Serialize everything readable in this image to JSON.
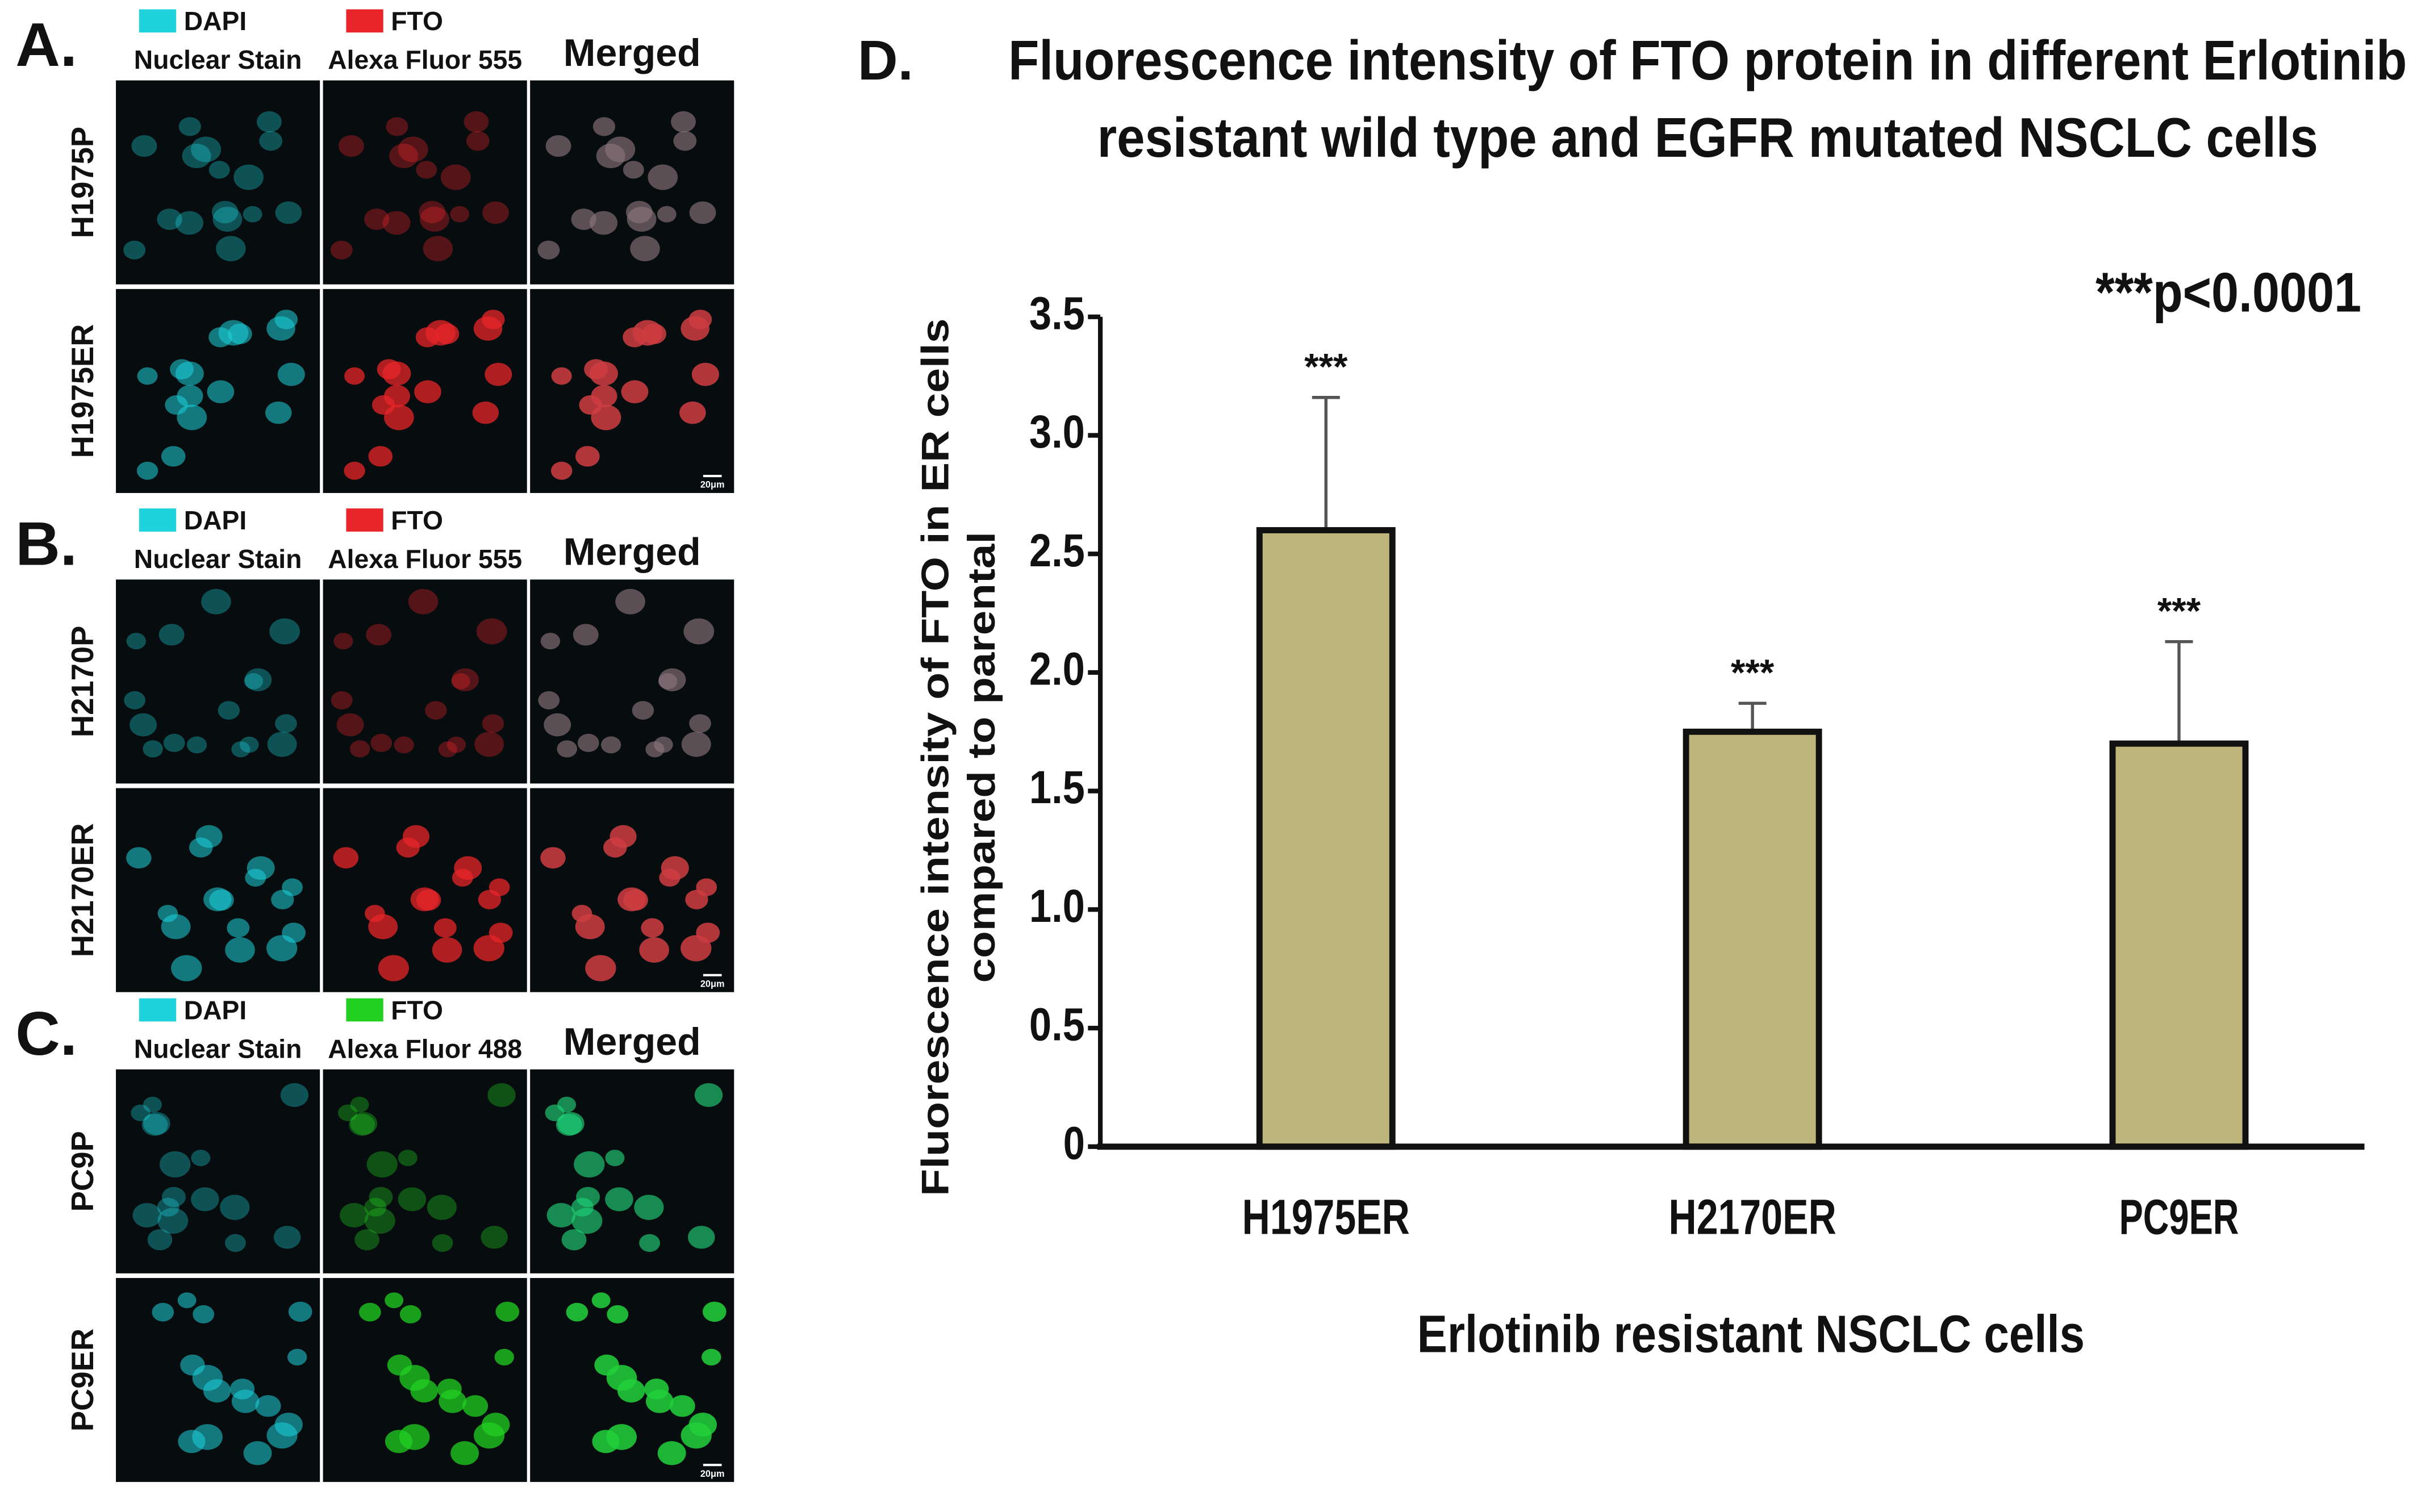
{
  "panels": [
    {
      "label": "A.",
      "channels": [
        {
          "name": "DAPI",
          "subtitle": "Nuclear Stain",
          "color": "#1ed3dc"
        },
        {
          "name": "FTO",
          "subtitle": "Alexa Fluor 555",
          "color": "#e8262a"
        },
        {
          "name": "Merged"
        }
      ],
      "rows": [
        "H1975P",
        "H1975ER"
      ],
      "scale_bar": "20μm"
    },
    {
      "label": "B.",
      "channels": [
        {
          "name": "DAPI",
          "subtitle": "Nuclear Stain",
          "color": "#1ed3dc"
        },
        {
          "name": "FTO",
          "subtitle": "Alexa Fluor 555",
          "color": "#e8262a"
        },
        {
          "name": "Merged"
        }
      ],
      "rows": [
        "H2170P",
        "H2170ER"
      ],
      "scale_bar": "20μm"
    },
    {
      "label": "C.",
      "channels": [
        {
          "name": "DAPI",
          "subtitle": "Nuclear Stain",
          "color": "#1ed3dc"
        },
        {
          "name": "FTO",
          "subtitle": "Alexa Fluor 488",
          "color": "#22d022"
        },
        {
          "name": "Merged"
        }
      ],
      "rows": [
        "PC9P",
        "PC9ER"
      ],
      "scale_bar": "20μm"
    }
  ],
  "chart_data": {
    "type": "bar",
    "panel_label": "D.",
    "title": [
      "Fluorescence intensity of FTO protein in different Erlotinib",
      "resistant wild type and EGFR mutated NSCLC cells"
    ],
    "annotation": "***p<0.0001",
    "x_label": "Erlotinib resistant NSCLC cells",
    "y_label": [
      "Fluorescence intensity of FTO in ER cells",
      "compared to parental"
    ],
    "categories": [
      "H1975ER",
      "H2170ER",
      "PC9ER"
    ],
    "values": [
      2.6,
      1.75,
      1.7
    ],
    "errors": [
      0.56,
      0.12,
      0.43
    ],
    "significance": [
      "***",
      "***",
      "***"
    ],
    "color": "#bdb57c",
    "ylim": [
      0,
      3.5
    ],
    "yticks": [
      0,
      0.5,
      {
        "value": 1,
        "label": "1.0"
      },
      1.5,
      {
        "value": 2,
        "label": "2.0"
      },
      2.5,
      {
        "value": 3,
        "label": "3.0"
      },
      3.5
    ]
  }
}
